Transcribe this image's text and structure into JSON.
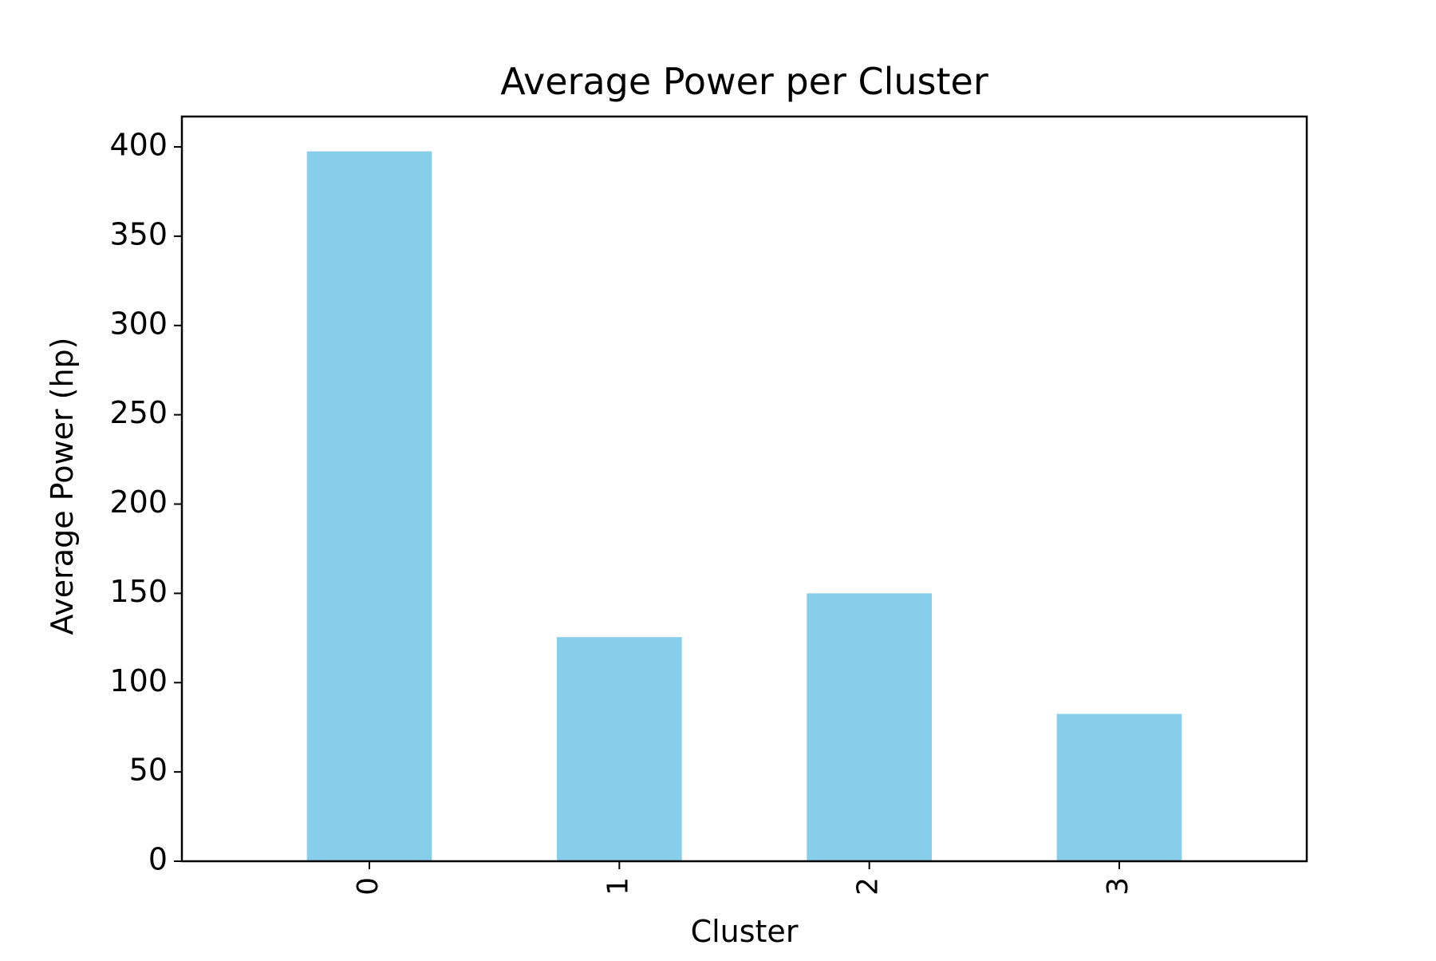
{
  "chart_data": {
    "type": "bar",
    "title": "Average Power per Cluster",
    "xlabel": "Cluster",
    "ylabel": "Average Power (hp)",
    "categories": [
      "0",
      "1",
      "2",
      "3"
    ],
    "values": [
      397.5,
      125.5,
      150.0,
      82.5
    ],
    "ylim": [
      0,
      417
    ],
    "yticks": [
      0,
      50,
      100,
      150,
      200,
      250,
      300,
      350,
      400
    ],
    "bar_color": "#87ceeb",
    "grid": false,
    "legend": "none"
  }
}
